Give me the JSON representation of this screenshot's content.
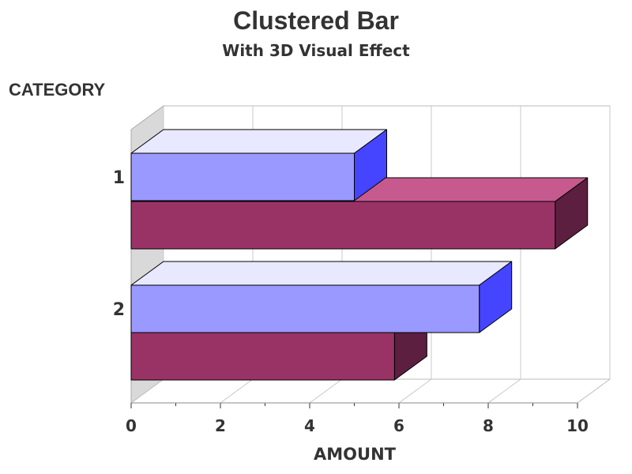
{
  "chart_data": {
    "type": "bar",
    "orientation": "horizontal",
    "effect": "3d",
    "title": "Clustered Bar",
    "subtitle": "With 3D Visual Effect",
    "ylabel": "CATEGORY",
    "xlabel": "AMOUNT",
    "categories": [
      "1",
      "2"
    ],
    "xlim": [
      0,
      10
    ],
    "xticks": [
      "0",
      "2",
      "4",
      "6",
      "8",
      "10"
    ],
    "grid": true,
    "legend": "none",
    "series": [
      {
        "values": [
          5.0,
          7.8
        ]
      },
      {
        "values": [
          9.5,
          5.9
        ]
      }
    ],
    "colors": {
      "series1": {
        "front": "#9999ff",
        "top": "#e8e8ff",
        "side": "#4545ff"
      },
      "series2": {
        "front": "#993366",
        "top": "#c65a8e",
        "side": "#5c1f3f"
      },
      "wall": "#d9d9d9",
      "grid": "#c8c8c8"
    }
  }
}
